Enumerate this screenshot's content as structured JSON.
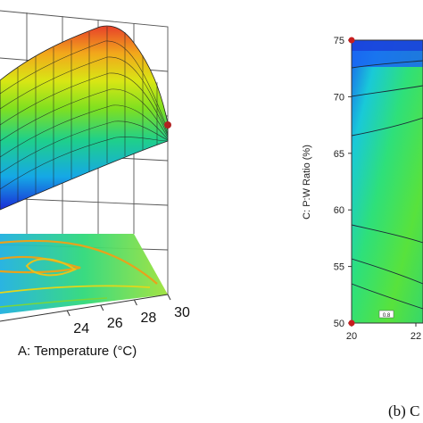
{
  "chart_data": [
    {
      "type": "surface",
      "x_axis": {
        "label": "A: Temperature (°C)",
        "ticks": [
          24,
          26,
          28,
          30
        ],
        "range": [
          20,
          30
        ]
      },
      "surface_color_scale": "blue-green-yellow-red",
      "grid": true,
      "contour_projection_on_floor": true,
      "design_points_shown": true,
      "point_color": "#b22222"
    },
    {
      "type": "contour",
      "x_axis": {
        "ticks_visible": [
          20,
          22
        ],
        "range": [
          20,
          30
        ]
      },
      "y_axis": {
        "label": "C: P:W Ratio (%)",
        "ticks": [
          50,
          55,
          60,
          65,
          70,
          75
        ],
        "range": [
          50,
          75
        ]
      },
      "contour_level_label": "0.8",
      "color_scale": "blue-green-yellow-red",
      "design_points": [
        {
          "x": 20,
          "y": 75
        },
        {
          "x": 20,
          "y": 50
        }
      ],
      "caption_fragment": "(b) C"
    }
  ]
}
